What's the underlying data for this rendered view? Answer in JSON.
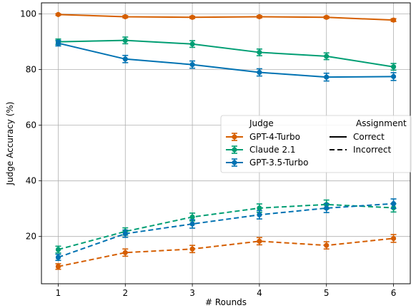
{
  "chart_data": {
    "type": "line",
    "title": "",
    "xlabel": "# Rounds",
    "ylabel": "Judge Accuracy (%)",
    "x": [
      1,
      2,
      3,
      4,
      5,
      6
    ],
    "xlim": [
      0.75,
      6.25
    ],
    "ylim": [
      3,
      104
    ],
    "xticks": [
      1,
      2,
      3,
      4,
      5,
      6
    ],
    "yticks": [
      20,
      40,
      60,
      80,
      100
    ],
    "grid": true,
    "legend": {
      "placement": "center-right",
      "judge_title": "Judge",
      "assignment_title": "Assignment",
      "judges": [
        {
          "name": "GPT-4-Turbo",
          "color": "#d55e00"
        },
        {
          "name": "Claude 2.1",
          "color": "#009e73"
        },
        {
          "name": "GPT-3.5-Turbo",
          "color": "#0072b2"
        }
      ],
      "assignments": [
        {
          "name": "Correct",
          "style": "solid"
        },
        {
          "name": "Incorrect",
          "style": "dashed"
        }
      ]
    },
    "series": [
      {
        "judge": "GPT-4-Turbo",
        "assignment": "Correct",
        "color": "#d55e00",
        "style": "solid",
        "values": [
          99.8,
          99.0,
          98.8,
          99.0,
          98.8,
          97.8
        ],
        "errors": [
          0.3,
          0.4,
          0.4,
          0.4,
          0.4,
          0.5
        ]
      },
      {
        "judge": "Claude 2.1",
        "assignment": "Correct",
        "color": "#009e73",
        "style": "solid",
        "values": [
          90.0,
          90.5,
          89.2,
          86.2,
          84.8,
          81.0
        ],
        "errors": [
          1.0,
          1.2,
          1.2,
          1.2,
          1.2,
          1.2
        ]
      },
      {
        "judge": "GPT-3.5-Turbo",
        "assignment": "Correct",
        "color": "#0072b2",
        "style": "solid",
        "values": [
          89.5,
          83.8,
          81.8,
          79.0,
          77.3,
          77.5
        ],
        "errors": [
          1.0,
          1.3,
          1.3,
          1.3,
          1.4,
          1.4
        ]
      },
      {
        "judge": "GPT-4-Turbo",
        "assignment": "Incorrect",
        "color": "#d55e00",
        "style": "dashed",
        "values": [
          9.2,
          14.2,
          15.5,
          18.3,
          16.8,
          19.3
        ],
        "errors": [
          1.0,
          1.3,
          1.3,
          1.3,
          1.3,
          1.4
        ]
      },
      {
        "judge": "Claude 2.1",
        "assignment": "Incorrect",
        "color": "#009e73",
        "style": "dashed",
        "values": [
          15.3,
          21.8,
          27.0,
          30.2,
          31.5,
          30.3
        ],
        "errors": [
          1.2,
          1.3,
          1.4,
          1.5,
          1.6,
          1.5
        ]
      },
      {
        "judge": "GPT-3.5-Turbo",
        "assignment": "Incorrect",
        "color": "#0072b2",
        "style": "dashed",
        "values": [
          12.5,
          21.0,
          24.5,
          27.8,
          30.2,
          31.8
        ],
        "errors": [
          1.1,
          1.3,
          1.5,
          1.5,
          1.6,
          1.7
        ]
      }
    ]
  }
}
